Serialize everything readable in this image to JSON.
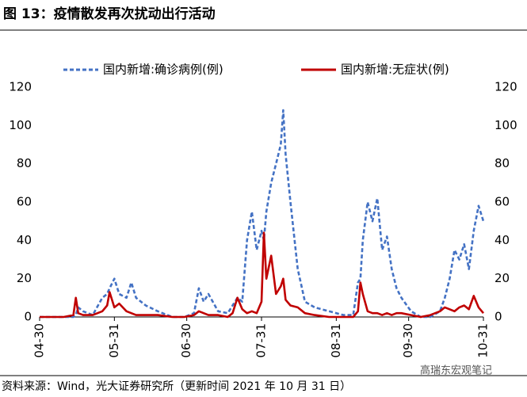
{
  "chart_data": {
    "type": "line",
    "title": "图 13：疫情散发再次扰动出行活动",
    "source": "资料来源：Wind，光大证券研究所（更新时间 2021 年 10 月 31 日）",
    "watermark": "高瑞东宏观笔记",
    "x": [
      "04-30",
      "05-05",
      "05-10",
      "05-14",
      "05-15",
      "05-16",
      "05-18",
      "05-22",
      "05-26",
      "05-28",
      "05-29",
      "05-31",
      "06-02",
      "06-05",
      "06-07",
      "06-09",
      "06-13",
      "06-18",
      "06-24",
      "06-29",
      "07-03",
      "07-05",
      "07-07",
      "07-09",
      "07-13",
      "07-17",
      "07-19",
      "07-21",
      "07-23",
      "07-25",
      "07-27",
      "07-29",
      "07-31",
      "08-01",
      "08-02",
      "08-04",
      "08-06",
      "08-08",
      "08-09",
      "08-10",
      "08-12",
      "08-15",
      "08-18",
      "08-22",
      "08-28",
      "09-03",
      "09-07",
      "09-09",
      "09-10",
      "09-11",
      "09-13",
      "09-15",
      "09-17",
      "09-19",
      "09-21",
      "09-23",
      "09-25",
      "09-27",
      "10-01",
      "10-05",
      "10-09",
      "10-13",
      "10-15",
      "10-17",
      "10-19",
      "10-21",
      "10-23",
      "10-25",
      "10-27",
      "10-29",
      "10-31"
    ],
    "series": [
      {
        "name": "国内新增:确诊病例(例)",
        "color": "#4472c4",
        "dashed": true,
        "values": [
          0,
          0,
          0,
          0,
          1,
          5,
          3,
          1,
          10,
          12,
          15,
          20,
          12,
          10,
          18,
          10,
          6,
          3,
          0,
          0,
          2,
          15,
          8,
          12,
          3,
          2,
          6,
          10,
          8,
          40,
          55,
          35,
          45,
          40,
          55,
          70,
          80,
          90,
          108,
          85,
          60,
          25,
          8,
          5,
          3,
          1,
          1,
          18,
          20,
          40,
          60,
          50,
          62,
          35,
          42,
          25,
          15,
          10,
          3,
          0,
          0,
          3,
          10,
          20,
          35,
          30,
          38,
          25,
          45,
          58,
          50
        ]
      },
      {
        "name": "国内新增:无症状(例)",
        "color": "#c00000",
        "dashed": false,
        "values": [
          0,
          0,
          0,
          1,
          10,
          2,
          1,
          1,
          3,
          6,
          13,
          5,
          7,
          3,
          2,
          1,
          1,
          1,
          0,
          0,
          1,
          3,
          2,
          1,
          1,
          0,
          2,
          10,
          4,
          2,
          3,
          2,
          8,
          44,
          20,
          32,
          12,
          16,
          20,
          9,
          6,
          5,
          2,
          1,
          0,
          0,
          0,
          3,
          18,
          12,
          3,
          2,
          2,
          1,
          2,
          1,
          2,
          2,
          1,
          0,
          1,
          3,
          5,
          4,
          3,
          5,
          6,
          4,
          11,
          5,
          2
        ]
      }
    ],
    "xlim": [
      "04-30",
      "10-31"
    ],
    "xticks": [
      "04-30",
      "05-31",
      "06-30",
      "07-31",
      "08-31",
      "09-30",
      "10-31"
    ],
    "ylim": [
      0,
      120
    ],
    "yticks": [
      0,
      20,
      40,
      60,
      80,
      100,
      120
    ],
    "y2lim": [
      0,
      120
    ],
    "y2ticks": [
      0,
      20,
      40,
      60,
      80,
      100,
      120
    ],
    "legend": "top"
  }
}
